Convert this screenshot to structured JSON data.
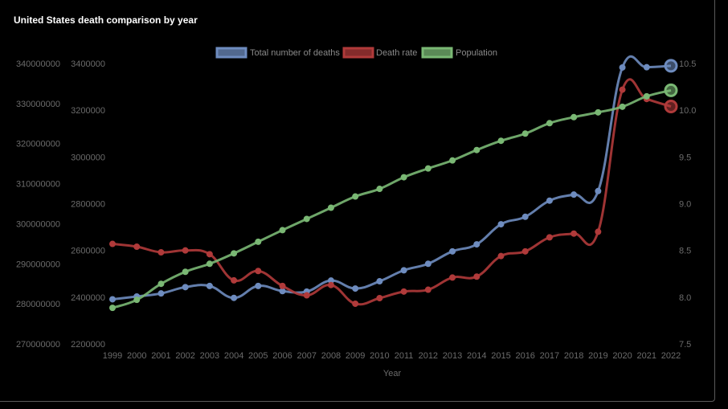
{
  "title": "United States death comparison by year",
  "chart_data": {
    "type": "line",
    "title": "United States death comparison by year",
    "xlabel": "Year",
    "legend_position": "top-center",
    "x": [
      1999,
      2000,
      2001,
      2002,
      2003,
      2004,
      2005,
      2006,
      2007,
      2008,
      2009,
      2010,
      2011,
      2012,
      2013,
      2014,
      2015,
      2016,
      2017,
      2018,
      2019,
      2020,
      2021,
      2022
    ],
    "axes": {
      "population": {
        "ticks": [
          "270000000",
          "280000000",
          "290000000",
          "300000000",
          "310000000",
          "320000000",
          "330000000",
          "340000000"
        ],
        "range": [
          270000000,
          340000000
        ]
      },
      "deaths": {
        "ticks": [
          "2200000",
          "2400000",
          "2600000",
          "2800000",
          "3000000",
          "3200000",
          "3400000"
        ],
        "range": [
          2200000,
          3400000
        ]
      },
      "rate": {
        "ticks": [
          "7.5",
          "8.0",
          "8.5",
          "9.0",
          "9.5",
          "10.0",
          "10.5"
        ],
        "range": [
          7.5,
          10.5
        ]
      }
    },
    "series": [
      {
        "name": "Total number of deaths",
        "color": "#6e8cbf",
        "axis": "deaths",
        "values": [
          2391000,
          2403000,
          2416000,
          2443000,
          2448000,
          2397000,
          2448000,
          2426000,
          2424000,
          2471000,
          2437000,
          2468000,
          2515000,
          2543000,
          2596000,
          2626000,
          2712000,
          2744000,
          2813000,
          2839000,
          2854000,
          3383000,
          3384000,
          3390000
        ]
      },
      {
        "name": "Death rate",
        "color": "#b03a3a",
        "axis": "rate",
        "values": [
          8.57,
          8.54,
          8.48,
          8.5,
          8.46,
          8.18,
          8.28,
          8.12,
          8.02,
          8.13,
          7.93,
          7.99,
          8.06,
          8.08,
          8.21,
          8.22,
          8.44,
          8.49,
          8.64,
          8.68,
          8.7,
          10.22,
          10.12,
          10.04
        ]
      },
      {
        "name": "Population",
        "color": "#7ab874",
        "axis": "population",
        "values": [
          279000000,
          281000000,
          285000000,
          288000000,
          290000000,
          292600000,
          295500000,
          298400000,
          301200000,
          304000000,
          306800000,
          308700000,
          311600000,
          313800000,
          315800000,
          318400000,
          320700000,
          322500000,
          325100000,
          326600000,
          327800000,
          329200000,
          331800000,
          333300000
        ]
      }
    ]
  }
}
